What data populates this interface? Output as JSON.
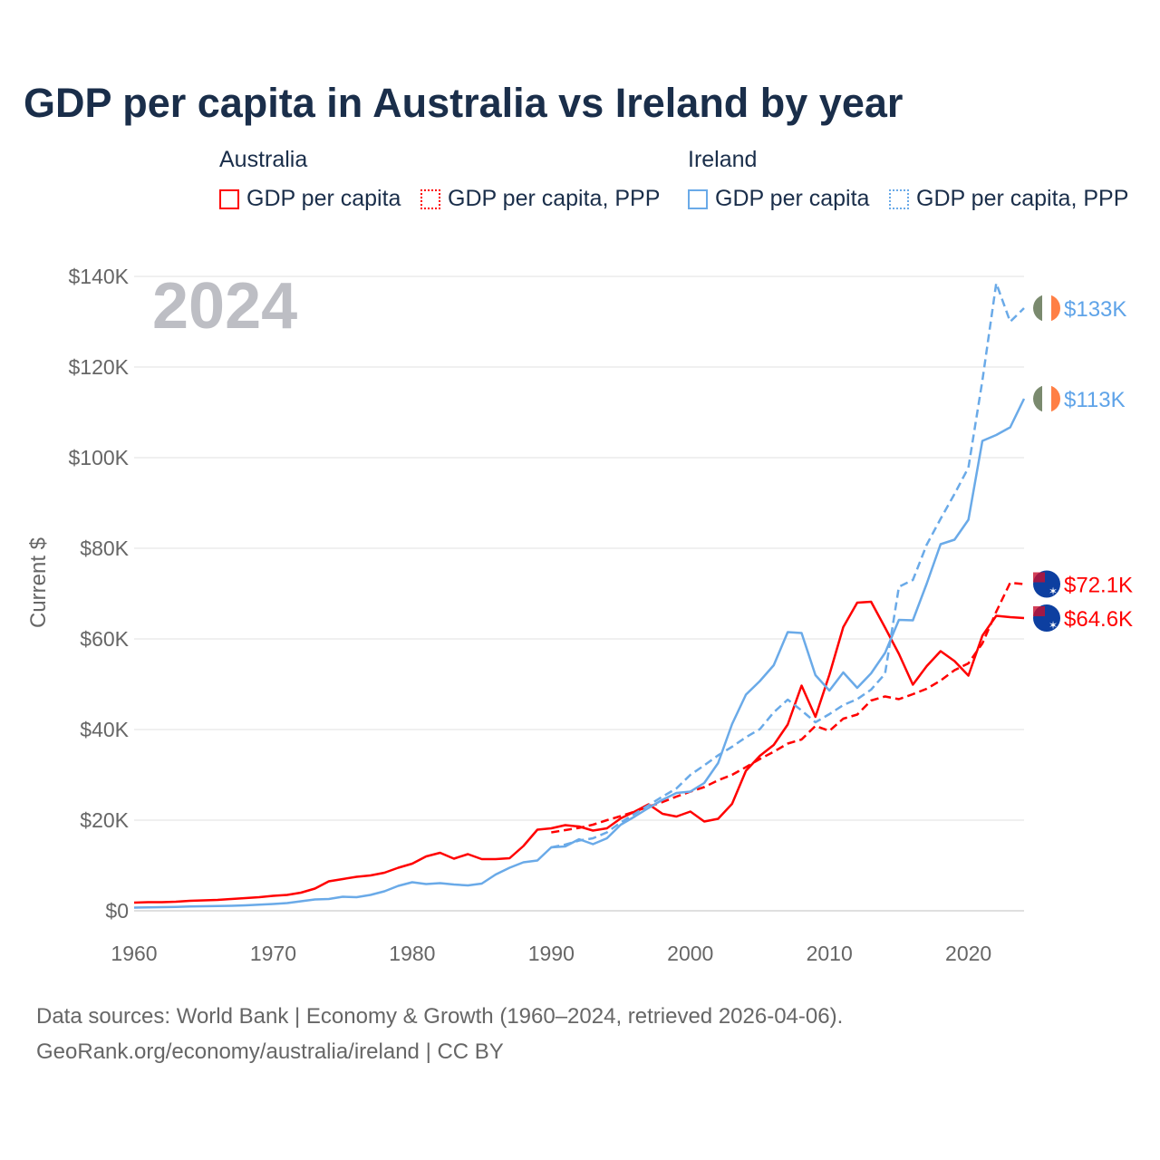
{
  "chart_data": {
    "type": "line",
    "title": "GDP per capita in Australia vs Ireland by year",
    "ylabel": "Current $",
    "xlabel": "",
    "year_label": "2024",
    "xlim": [
      1960,
      2024
    ],
    "ylim": [
      0,
      140000
    ],
    "yticks": [
      {
        "v": 0,
        "label": "$0"
      },
      {
        "v": 20000,
        "label": "$20K"
      },
      {
        "v": 40000,
        "label": "$40K"
      },
      {
        "v": 60000,
        "label": "$60K"
      },
      {
        "v": 80000,
        "label": "$80K"
      },
      {
        "v": 100000,
        "label": "$100K"
      },
      {
        "v": 120000,
        "label": "$120K"
      },
      {
        "v": 140000,
        "label": "$140K"
      }
    ],
    "xticks": [
      1960,
      1970,
      1980,
      1990,
      2000,
      2010,
      2020
    ],
    "legend_groups": [
      {
        "name": "Australia",
        "items": [
          "GDP per capita",
          "GDP per capita, PPP"
        ]
      },
      {
        "name": "Ireland",
        "items": [
          "GDP per capita",
          "GDP per capita, PPP"
        ]
      }
    ],
    "series": [
      {
        "name": "Australia GDP per capita",
        "color": "#ff0000",
        "dash": false,
        "start": 1960,
        "end_label": "$64.6K",
        "flag": "australia",
        "values": [
          1.8,
          1.9,
          1.9,
          2.0,
          2.2,
          2.3,
          2.4,
          2.6,
          2.8,
          3.0,
          3.3,
          3.5,
          4.0,
          4.9,
          6.5,
          7.0,
          7.5,
          7.8,
          8.4,
          9.5,
          10.4,
          12.0,
          12.8,
          11.5,
          12.5,
          11.4,
          11.4,
          11.6,
          14.3,
          17.9,
          18.2,
          18.9,
          18.6,
          17.7,
          18.2,
          20.4,
          21.9,
          23.5,
          21.4,
          20.8,
          21.9,
          19.7,
          20.3,
          23.6,
          30.9,
          34.2,
          36.6,
          41.1,
          49.7,
          42.8,
          52.1,
          62.6,
          68.0,
          68.2,
          62.5,
          56.7,
          49.9,
          54.0,
          57.3,
          55.1,
          51.9,
          60.7,
          65.1,
          64.8,
          64.6
        ]
      },
      {
        "name": "Australia GDP per capita, PPP",
        "color": "#ff0000",
        "dash": true,
        "start": 1990,
        "end_label": "$72.1K",
        "flag": "australia",
        "values": [
          17.3,
          17.8,
          18.3,
          19.0,
          20.0,
          20.9,
          21.9,
          23.0,
          24.0,
          25.2,
          26.3,
          27.3,
          28.8,
          30.0,
          31.7,
          33.5,
          35.1,
          36.9,
          37.8,
          40.8,
          39.7,
          42.4,
          43.3,
          46.4,
          47.3,
          46.7,
          47.8,
          49.0,
          50.8,
          53.1,
          54.6,
          59.0,
          66.0,
          72.4,
          72.1
        ]
      },
      {
        "name": "Ireland GDP per capita",
        "color": "#6aaae8",
        "dash": false,
        "start": 1960,
        "end_label": "$113K",
        "flag": "ireland",
        "values": [
          0.7,
          0.75,
          0.8,
          0.85,
          0.95,
          1.0,
          1.05,
          1.1,
          1.2,
          1.35,
          1.5,
          1.7,
          2.1,
          2.5,
          2.6,
          3.1,
          3.0,
          3.5,
          4.3,
          5.5,
          6.3,
          5.9,
          6.1,
          5.8,
          5.6,
          6.0,
          8.0,
          9.5,
          10.7,
          11.1,
          14.0,
          14.2,
          15.8,
          14.7,
          16.0,
          19.0,
          20.8,
          22.7,
          24.5,
          26.0,
          26.3,
          28.2,
          32.6,
          41.2,
          47.7,
          50.7,
          54.2,
          61.5,
          61.3,
          52.0,
          48.6,
          52.6,
          49.2,
          52.4,
          56.9,
          64.2,
          64.1,
          72.2,
          80.9,
          81.9,
          86.3,
          103.7,
          105.0,
          106.7,
          113.0
        ]
      },
      {
        "name": "Ireland GDP per capita, PPP",
        "color": "#6aaae8",
        "dash": true,
        "start": 1990,
        "end_label": "$133K",
        "flag": "ireland",
        "values": [
          14.0,
          14.6,
          15.5,
          16.0,
          17.3,
          19.5,
          21.4,
          23.3,
          25.2,
          27.0,
          30.0,
          32.1,
          34.3,
          36.2,
          38.3,
          40.1,
          43.8,
          46.6,
          44.2,
          41.6,
          43.4,
          45.4,
          46.7,
          48.8,
          52.3,
          71.5,
          73.0,
          80.8,
          86.5,
          92.0,
          97.8,
          117.0,
          138.5,
          130.0,
          133.0
        ]
      }
    ],
    "values_unit": "thousand current US$"
  },
  "footer": {
    "line1": "Data sources: World Bank | Economy & Growth (1960–2024, retrieved 2026-04-06).",
    "line2": "GeoRank.org/economy/australia/ireland | CC BY"
  }
}
